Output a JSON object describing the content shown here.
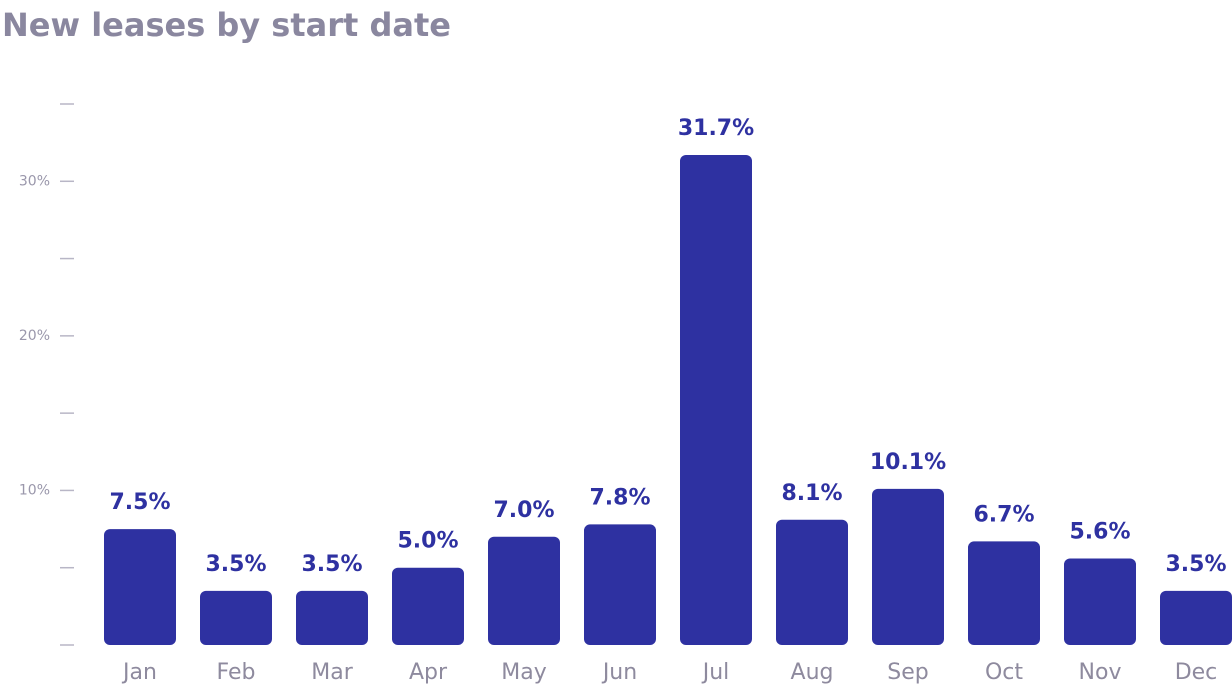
{
  "chart_data": {
    "type": "bar",
    "title": "New leases by start date",
    "categories": [
      "Jan",
      "Feb",
      "Mar",
      "Apr",
      "May",
      "Jun",
      "Jul",
      "Aug",
      "Sep",
      "Oct",
      "Nov",
      "Dec"
    ],
    "values": [
      7.5,
      3.5,
      3.5,
      5.0,
      7.0,
      7.8,
      31.7,
      8.1,
      10.1,
      6.7,
      5.6,
      3.5
    ],
    "value_labels": [
      "7.5%",
      "3.5%",
      "3.5%",
      "5.0%",
      "7.0%",
      "7.8%",
      "31.7%",
      "8.1%",
      "10.1%",
      "6.7%",
      "5.6%",
      "3.5%"
    ],
    "color": "#2e31a1",
    "ylim": [
      0,
      35
    ],
    "yticks": [
      {
        "value": 10,
        "label": "10%"
      },
      {
        "value": 20,
        "label": "20%"
      },
      {
        "value": 30,
        "label": "30%"
      }
    ],
    "yticks_minor": [
      0,
      5,
      15,
      25,
      35
    ]
  }
}
